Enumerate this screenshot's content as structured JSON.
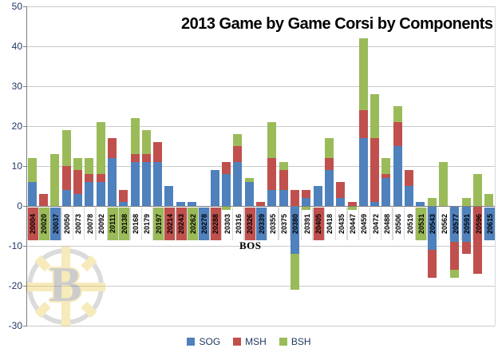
{
  "title": "2013 Game by Game Corsi by Components",
  "axis_label": "BOS",
  "legend": [
    {
      "label": "SOG",
      "color": "#4F81BD"
    },
    {
      "label": "MSH",
      "color": "#C0504D"
    },
    {
      "label": "BSH",
      "color": "#9BBB59"
    }
  ],
  "colors": {
    "sog": "#4F81BD",
    "msh": "#C0504D",
    "bsh": "#9BBB59",
    "gridline": "#c9c9c9",
    "zero_axis": "#7f7f7f",
    "y_tick_text": "#1F3864",
    "x_label_text": "#000000"
  },
  "y_axis": {
    "min": -30,
    "max": 50,
    "step": 10,
    "ticks": [
      50,
      40,
      30,
      20,
      10,
      0,
      -10,
      -20,
      -30
    ]
  },
  "chart_data": {
    "type": "bar",
    "stacked": true,
    "title": "2013 Game by Game Corsi by Components",
    "xlabel": "BOS",
    "ylabel": "",
    "ylim": [
      -30,
      50
    ],
    "grid": true,
    "legend_position": "bottom",
    "categories": [
      "20004",
      "20020",
      "20037",
      "20050",
      "20073",
      "20078",
      "20092",
      "20111",
      "20138",
      "20168",
      "20179",
      "20197",
      "20214",
      "20243",
      "20262",
      "20278",
      "20288",
      "20303",
      "20316",
      "20326",
      "20339",
      "20355",
      "20375",
      "20380",
      "20391",
      "20405",
      "20418",
      "20435",
      "20447",
      "20459",
      "20472",
      "20488",
      "20506",
      "20519",
      "20531",
      "20543",
      "20562",
      "20577",
      "20591",
      "20596",
      "20615"
    ],
    "series": [
      {
        "name": "SOG",
        "values": [
          6,
          0,
          0,
          4,
          3,
          6,
          6,
          12,
          1,
          11,
          11,
          11,
          5,
          1,
          1,
          0,
          9,
          8,
          11,
          6,
          0,
          4,
          4,
          -12,
          2,
          5,
          9,
          2,
          0,
          17,
          1,
          7,
          15,
          5,
          1,
          -11,
          0,
          -9,
          -9,
          0,
          0
        ]
      },
      {
        "name": "MSH",
        "values": [
          0,
          3,
          0,
          6,
          6,
          2,
          2,
          5,
          3,
          2,
          2,
          5,
          0,
          0,
          0,
          0,
          0,
          3,
          4,
          0,
          1,
          8,
          5,
          4,
          2,
          0,
          3,
          4,
          1,
          7,
          16,
          1,
          6,
          4,
          0,
          -7,
          0,
          -7,
          -3,
          -17,
          0
        ]
      },
      {
        "name": "BSH",
        "values": [
          6,
          0,
          13,
          9,
          3,
          4,
          13,
          0,
          0,
          9,
          6,
          0,
          0,
          0,
          0,
          0,
          0,
          -1,
          3,
          1,
          0,
          9,
          2,
          -9,
          -1,
          0,
          5,
          0,
          -1,
          18,
          11,
          4,
          4,
          0,
          0,
          2,
          11,
          -2,
          2,
          8,
          3
        ]
      }
    ],
    "label_highlights": [
      "red",
      "green",
      "blue",
      "none",
      "none",
      "none",
      "none",
      "green",
      "green",
      "none",
      "none",
      "green",
      "red",
      "red",
      "green",
      "blue",
      "red",
      "none",
      "none",
      "red",
      "blue",
      "none",
      "none",
      "none",
      "none",
      "red",
      "none",
      "none",
      "none",
      "none",
      "none",
      "none",
      "none",
      "none",
      "green",
      "none",
      "none",
      "none",
      "none",
      "none",
      "blue"
    ]
  }
}
